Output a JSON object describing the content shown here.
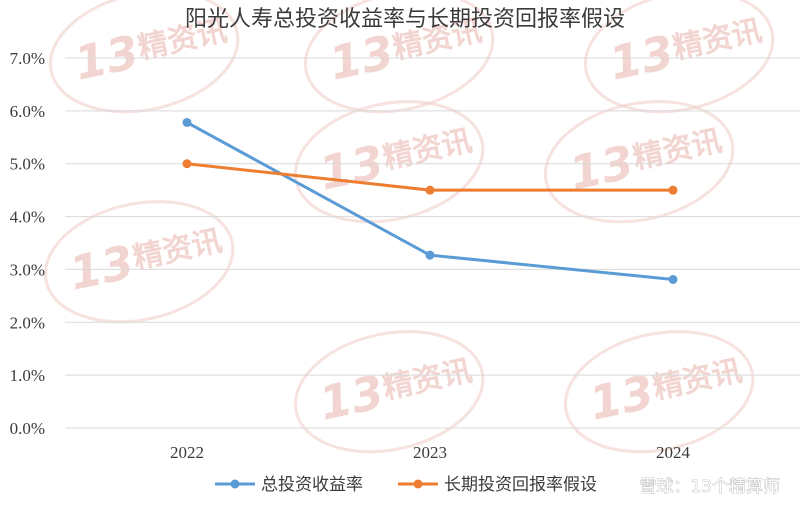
{
  "chart_data": {
    "type": "line",
    "title": "阳光人寿总投资收益率与长期投资回报率假设",
    "categories": [
      "2022",
      "2023",
      "2024"
    ],
    "series": [
      {
        "name": "总投资收益率",
        "values": [
          5.78,
          3.27,
          2.81
        ],
        "color": "#5b9bd5"
      },
      {
        "name": "长期投资回报率假设",
        "values": [
          5.0,
          4.5,
          4.5
        ],
        "color": "#ed7d31"
      }
    ],
    "yticks": [
      "0.0%",
      "1.0%",
      "2.0%",
      "3.0%",
      "4.0%",
      "5.0%",
      "6.0%",
      "7.0%"
    ],
    "ylim": [
      0,
      7
    ],
    "grid": true,
    "legend": "bottom"
  },
  "watermark": {
    "number": "13",
    "text": "精资讯"
  },
  "credit": "雪球：13个精算师"
}
